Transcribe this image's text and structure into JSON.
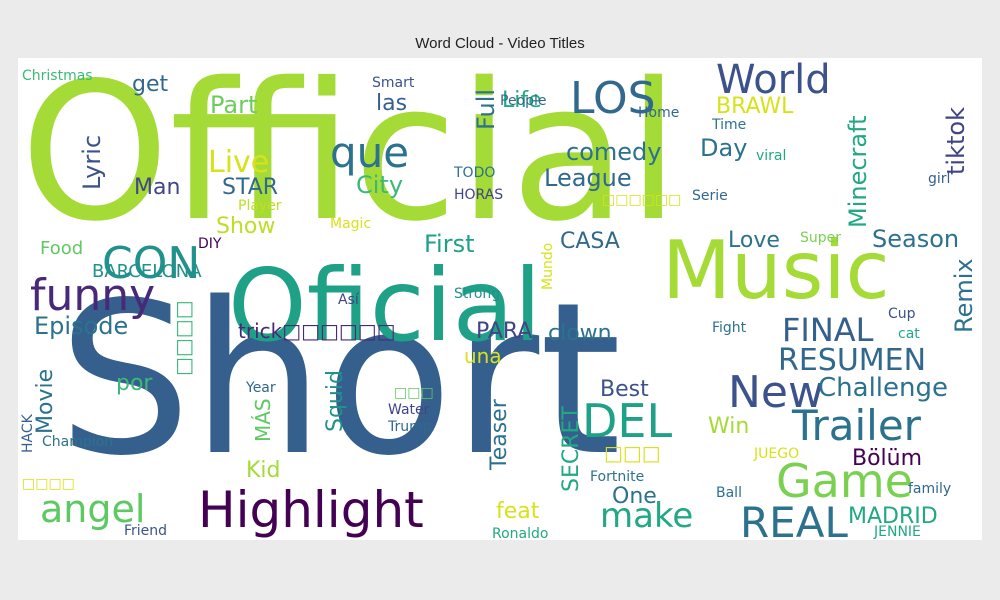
{
  "chart_data": {
    "type": "wordcloud",
    "title": "Word Cloud - Video Titles",
    "background": "#ffffff",
    "words": [
      {
        "text": "Short",
        "weight": 100,
        "color": "#35608d"
      },
      {
        "text": "Official",
        "weight": 97,
        "color": "#a5db36"
      },
      {
        "text": "Oficial",
        "weight": 62,
        "color": "#1fa187"
      },
      {
        "text": "Music",
        "weight": 48,
        "color": "#a5db36"
      },
      {
        "text": "Highlight",
        "weight": 24,
        "color": "#440154"
      },
      {
        "text": "Game",
        "weight": 24,
        "color": "#7ad151"
      },
      {
        "text": "DEL",
        "weight": 23,
        "color": "#1fa187"
      },
      {
        "text": "New",
        "weight": 23,
        "color": "#3b528b"
      },
      {
        "text": "Trailer",
        "weight": 21,
        "color": "#2c728e"
      },
      {
        "text": "REAL",
        "weight": 21,
        "color": "#2c728e"
      },
      {
        "text": "funny",
        "weight": 21,
        "color": "#482878"
      },
      {
        "text": "CON",
        "weight": 21,
        "color": "#21918c"
      },
      {
        "text": "que",
        "weight": 20,
        "color": "#2c728e"
      },
      {
        "text": "LOS",
        "weight": 20,
        "color": "#31688e"
      },
      {
        "text": "World",
        "weight": 19,
        "color": "#3b528b"
      },
      {
        "text": "angel",
        "weight": 18,
        "color": "#5ec962"
      },
      {
        "text": "make",
        "weight": 17,
        "color": "#22a884"
      },
      {
        "text": "FINAL",
        "weight": 16,
        "color": "#35608d"
      },
      {
        "text": "RESUMEN",
        "weight": 15,
        "color": "#31688e"
      },
      {
        "text": "Live",
        "weight": 15,
        "color": "#d8e219"
      },
      {
        "text": "Challenge",
        "weight": 13,
        "color": "#2c728e"
      },
      {
        "text": "Season",
        "weight": 13,
        "color": "#2c728e"
      },
      {
        "text": "comedy",
        "weight": 13,
        "color": "#2c728e"
      },
      {
        "text": "League",
        "weight": 13,
        "color": "#31688e"
      },
      {
        "text": "City",
        "weight": 13,
        "color": "#3aba76"
      },
      {
        "text": "Part",
        "weight": 13,
        "color": "#6ccd5a"
      },
      {
        "text": "Full",
        "weight": 13,
        "color": "#2c728e"
      },
      {
        "text": "First",
        "weight": 13,
        "color": "#1fa187"
      },
      {
        "text": "Day",
        "weight": 13,
        "color": "#2c728e"
      },
      {
        "text": "Episode",
        "weight": 13,
        "color": "#2c728e"
      },
      {
        "text": "Minecraft",
        "weight": 13,
        "color": "#22a884"
      },
      {
        "text": "tiktok",
        "weight": 13,
        "color": "#414487"
      },
      {
        "text": "Remix",
        "weight": 13,
        "color": "#2c728e"
      },
      {
        "text": "Lyric",
        "weight": 13,
        "color": "#3b528b"
      },
      {
        "text": "Best",
        "weight": 12,
        "color": "#3b528b"
      },
      {
        "text": "Love",
        "weight": 12,
        "color": "#2c728e"
      },
      {
        "text": "MADRID",
        "weight": 12,
        "color": "#22a884"
      },
      {
        "text": "Bölüm",
        "weight": 12,
        "color": "#440154"
      },
      {
        "text": "Movie",
        "weight": 12,
        "color": "#2c728e"
      },
      {
        "text": "Teaser",
        "weight": 12,
        "color": "#2c728e"
      },
      {
        "text": "Squid",
        "weight": 12,
        "color": "#21918c"
      },
      {
        "text": "SECRET",
        "weight": 12,
        "color": "#22a884"
      },
      {
        "text": "BRAWL",
        "weight": 12,
        "color": "#d8e219"
      },
      {
        "text": "CASA",
        "weight": 12,
        "color": "#31688e"
      },
      {
        "text": "Man",
        "weight": 12,
        "color": "#414487"
      },
      {
        "text": "STAR",
        "weight": 12,
        "color": "#31688e"
      },
      {
        "text": "Show",
        "weight": 12,
        "color": "#bddf26"
      },
      {
        "text": "Life",
        "weight": 12,
        "color": "#22a884"
      },
      {
        "text": "get",
        "weight": 12,
        "color": "#31688e"
      },
      {
        "text": "las",
        "weight": 12,
        "color": "#35608d"
      },
      {
        "text": "por",
        "weight": 12,
        "color": "#3aba76"
      },
      {
        "text": "PARA",
        "weight": 12,
        "color": "#414487"
      },
      {
        "text": "clown",
        "weight": 12,
        "color": "#2c728e"
      },
      {
        "text": "One",
        "weight": 12,
        "color": "#2c728e"
      },
      {
        "text": "feat",
        "weight": 12,
        "color": "#d8e219"
      },
      {
        "text": "Kid",
        "weight": 12,
        "color": "#a5db36"
      },
      {
        "text": "Win",
        "weight": 12,
        "color": "#a5db36"
      },
      {
        "text": "trick□□□□□□",
        "weight": 11,
        "color": "#482878"
      },
      {
        "text": "BARCELONA",
        "weight": 11,
        "color": "#21918c"
      },
      {
        "text": "MÁS",
        "weight": 11,
        "color": "#5ec962"
      },
      {
        "text": "□□□□",
        "weight": 11,
        "color": "#3aba76"
      },
      {
        "text": "□□□",
        "weight": 11,
        "color": "#d8e219"
      },
      {
        "text": "una",
        "weight": 11,
        "color": "#d8e219"
      },
      {
        "text": "Food",
        "weight": 10,
        "color": "#5ec962"
      },
      {
        "text": "Christmas",
        "weight": 9,
        "color": "#3aba76"
      },
      {
        "text": "People",
        "weight": 9,
        "color": "#31688e"
      },
      {
        "text": "Smart",
        "weight": 9,
        "color": "#3b528b"
      },
      {
        "text": "Home",
        "weight": 9,
        "color": "#31688e"
      },
      {
        "text": "Time",
        "weight": 9,
        "color": "#2c728e"
      },
      {
        "text": "viral",
        "weight": 9,
        "color": "#22a884"
      },
      {
        "text": "girl",
        "weight": 9,
        "color": "#35608d"
      },
      {
        "text": "Serie",
        "weight": 9,
        "color": "#31688e"
      },
      {
        "text": "TODO",
        "weight": 9,
        "color": "#2c728e"
      },
      {
        "text": "HORAS",
        "weight": 9,
        "color": "#414487"
      },
      {
        "text": "Player",
        "weight": 9,
        "color": "#bddf26"
      },
      {
        "text": "Magic",
        "weight": 9,
        "color": "#d8e219"
      },
      {
        "text": "DIY",
        "weight": 9,
        "color": "#440154"
      },
      {
        "text": "□□□□□□",
        "weight": 9,
        "color": "#d8e219"
      },
      {
        "text": "Super",
        "weight": 9,
        "color": "#7ad151"
      },
      {
        "text": "Mundo",
        "weight": 9,
        "color": "#d8e219"
      },
      {
        "text": "Así",
        "weight": 9,
        "color": "#414487"
      },
      {
        "text": "Strong",
        "weight": 9,
        "color": "#21918c"
      },
      {
        "text": "Cup",
        "weight": 9,
        "color": "#3b528b"
      },
      {
        "text": "Fight",
        "weight": 9,
        "color": "#2c728e"
      },
      {
        "text": "cat",
        "weight": 9,
        "color": "#22a884"
      },
      {
        "text": "Year",
        "weight": 9,
        "color": "#31688e"
      },
      {
        "text": "Water",
        "weight": 9,
        "color": "#414487"
      },
      {
        "text": "Trump",
        "weight": 9,
        "color": "#31688e"
      },
      {
        "text": "HACK",
        "weight": 9,
        "color": "#35608d"
      },
      {
        "text": "Champion",
        "weight": 9,
        "color": "#2c728e"
      },
      {
        "text": "□□□",
        "weight": 9,
        "color": "#5ec962"
      },
      {
        "text": "JUEGO",
        "weight": 9,
        "color": "#d8e219"
      },
      {
        "text": "Fortnite",
        "weight": 9,
        "color": "#2c728e"
      },
      {
        "text": "Ball",
        "weight": 9,
        "color": "#2c728e"
      },
      {
        "text": "family",
        "weight": 9,
        "color": "#31688e"
      },
      {
        "text": "□□□□",
        "weight": 9,
        "color": "#d8e219"
      },
      {
        "text": "Friend",
        "weight": 9,
        "color": "#3b528b"
      },
      {
        "text": "Ronaldo",
        "weight": 9,
        "color": "#22a884"
      },
      {
        "text": "JENNIE",
        "weight": 9,
        "color": "#22a884"
      }
    ]
  }
}
